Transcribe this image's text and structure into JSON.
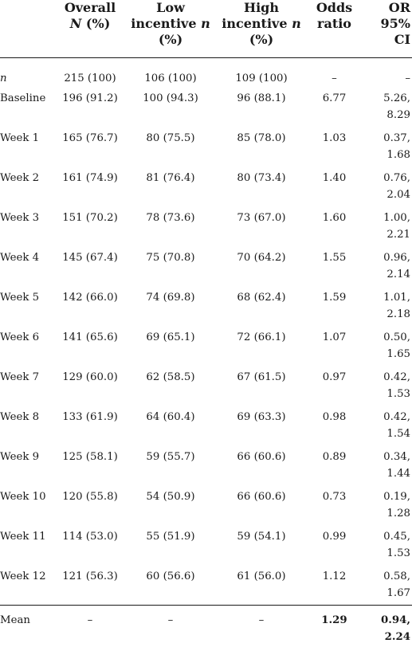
{
  "headers": {
    "label": "",
    "overall_a": "Overall",
    "overall_b": "N",
    "overall_c": " (%)",
    "low_a": "Low",
    "low_b": "incentive ",
    "low_c": "n",
    "low_d": "(%)",
    "high_a": "High",
    "high_b": "incentive ",
    "high_c": "n",
    "high_d": "(%)",
    "odds_a": "Odds",
    "odds_b": "ratio",
    "ci_a": "OR",
    "ci_b": "95%",
    "ci_c": "CI"
  },
  "rows": [
    {
      "label": "n",
      "overall": "215 (100)",
      "low": "106 (100)",
      "high": "109 (100)",
      "odds": "–",
      "ci_a": "–",
      "ci_b": ""
    },
    {
      "label": "Baseline",
      "overall": "196 (91.2)",
      "low": "100 (94.3)",
      "high": "96 (88.1)",
      "odds": "6.77",
      "ci_a": "5.26,",
      "ci_b": "8.29"
    },
    {
      "label": "Week 1",
      "overall": "165 (76.7)",
      "low": "80 (75.5)",
      "high": "85 (78.0)",
      "odds": "1.03",
      "ci_a": "0.37,",
      "ci_b": "1.68"
    },
    {
      "label": "Week 2",
      "overall": "161 (74.9)",
      "low": "81 (76.4)",
      "high": "80 (73.4)",
      "odds": "1.40",
      "ci_a": "0.76,",
      "ci_b": "2.04"
    },
    {
      "label": "Week 3",
      "overall": "151 (70.2)",
      "low": "78 (73.6)",
      "high": "73 (67.0)",
      "odds": "1.60",
      "ci_a": "1.00,",
      "ci_b": "2.21"
    },
    {
      "label": "Week 4",
      "overall": "145 (67.4)",
      "low": "75 (70.8)",
      "high": "70 (64.2)",
      "odds": "1.55",
      "ci_a": "0.96,",
      "ci_b": "2.14"
    },
    {
      "label": "Week 5",
      "overall": "142 (66.0)",
      "low": "74 (69.8)",
      "high": "68 (62.4)",
      "odds": "1.59",
      "ci_a": "1.01,",
      "ci_b": "2.18"
    },
    {
      "label": "Week 6",
      "overall": "141 (65.6)",
      "low": "69 (65.1)",
      "high": "72 (66.1)",
      "odds": "1.07",
      "ci_a": "0.50,",
      "ci_b": "1.65"
    },
    {
      "label": "Week 7",
      "overall": "129 (60.0)",
      "low": "62 (58.5)",
      "high": "67 (61.5)",
      "odds": "0.97",
      "ci_a": "0.42,",
      "ci_b": "1.53"
    },
    {
      "label": "Week 8",
      "overall": "133 (61.9)",
      "low": "64 (60.4)",
      "high": "69 (63.3)",
      "odds": "0.98",
      "ci_a": "0.42,",
      "ci_b": "1.54"
    },
    {
      "label": "Week 9",
      "overall": "125 (58.1)",
      "low": "59 (55.7)",
      "high": "66 (60.6)",
      "odds": "0.89",
      "ci_a": "0.34,",
      "ci_b": "1.44"
    },
    {
      "label": "Week 10",
      "overall": "120 (55.8)",
      "low": "54 (50.9)",
      "high": "66 (60.6)",
      "odds": "0.73",
      "ci_a": "0.19,",
      "ci_b": "1.28"
    },
    {
      "label": "Week 11",
      "overall": "114 (53.0)",
      "low": "55 (51.9)",
      "high": "59 (54.1)",
      "odds": "0.99",
      "ci_a": "0.45,",
      "ci_b": "1.53"
    },
    {
      "label": "Week 12",
      "overall": "121 (56.3)",
      "low": "60 (56.6)",
      "high": "61 (56.0)",
      "odds": "1.12",
      "ci_a": "0.58,",
      "ci_b": "1.67"
    },
    {
      "label": "Mean",
      "overall": "–",
      "low": "–",
      "high": "–",
      "odds": "1.29",
      "ci_a": "0.94,",
      "ci_b": "2.24"
    }
  ]
}
